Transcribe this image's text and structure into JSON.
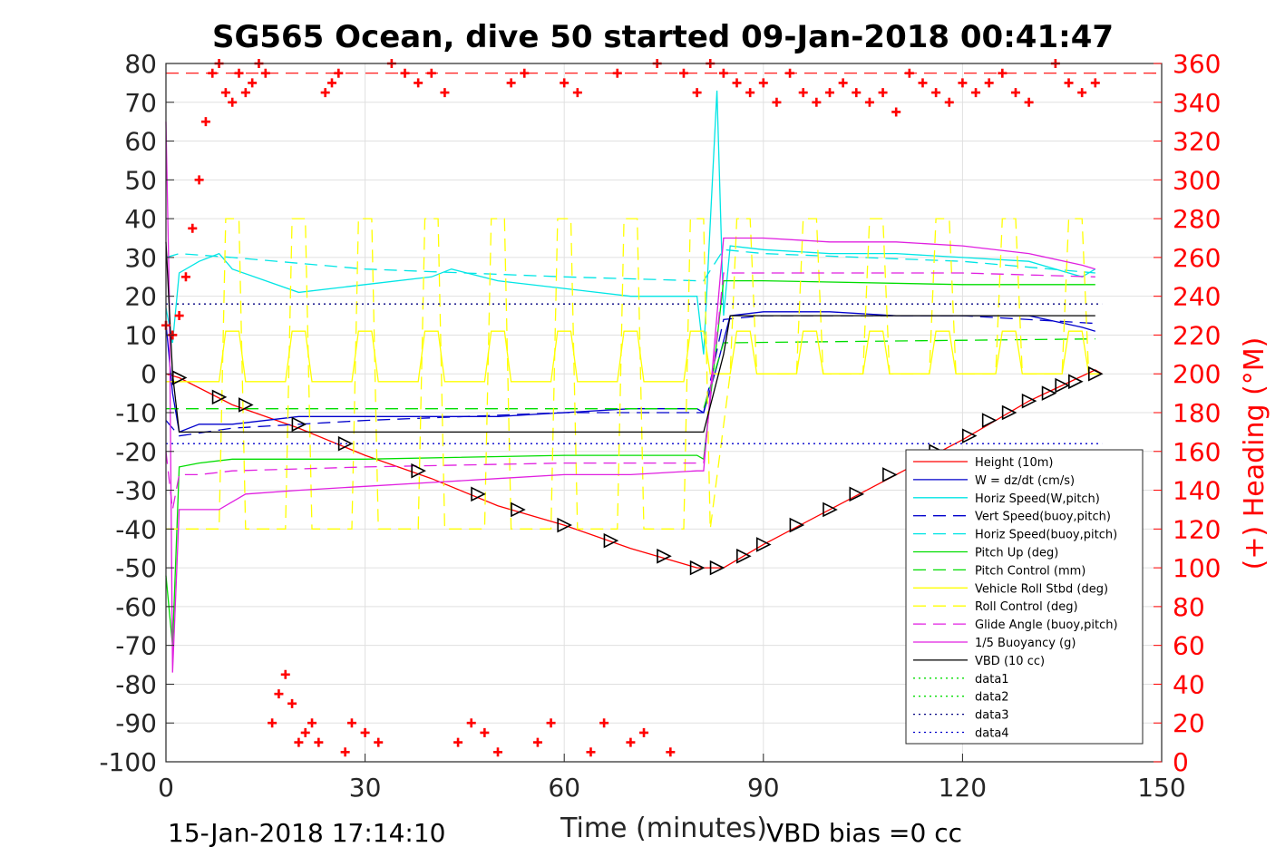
{
  "chart_data": {
    "type": "line",
    "title": "SG565 Ocean, dive 50 started 09-Jan-2018 00:41:47",
    "xlabel": "Time (minutes)",
    "ylabel": "",
    "y2label": "(+) Heading (°M)",
    "xlim": [
      0,
      150
    ],
    "ylim": [
      -100,
      80
    ],
    "y2lim": [
      0,
      360
    ],
    "xticks": [
      "0",
      "30",
      "60",
      "90",
      "120",
      "150"
    ],
    "yticks": [
      "80",
      "70",
      "60",
      "50",
      "40",
      "30",
      "20",
      "10",
      "0",
      "-10",
      "-20",
      "-30",
      "-40",
      "-50",
      "-60",
      "-70",
      "-80",
      "-90",
      "-100"
    ],
    "y2ticks": [
      "360",
      "340",
      "320",
      "300",
      "280",
      "260",
      "240",
      "220",
      "200",
      "180",
      "160",
      "140",
      "120",
      "100",
      "80",
      "60",
      "40",
      "20",
      "0"
    ],
    "grid": true,
    "legend_position": "lower-right",
    "footer_left": "15-Jan-2018 17:14:10",
    "footer_right": "VBD bias =0 cc",
    "series": [
      {
        "name": "Height (10m)",
        "color": "#ff0000",
        "style": "solid",
        "x": [
          0,
          2,
          10,
          20,
          30,
          40,
          50,
          60,
          70,
          80,
          84,
          90,
          100,
          110,
          120,
          130,
          140,
          141
        ],
        "y": [
          0,
          -1,
          -8,
          -14,
          -21,
          -27,
          -34,
          -39,
          -45,
          -50,
          -50,
          -44,
          -35,
          -26,
          -17,
          -7,
          1,
          0
        ]
      },
      {
        "name": "W = dz/dt (cm/s)",
        "color": "#0000cc",
        "style": "solid",
        "x": [
          0,
          1,
          2,
          5,
          10,
          20,
          30,
          40,
          50,
          60,
          70,
          80,
          81,
          83,
          85,
          90,
          100,
          110,
          120,
          130,
          138,
          140
        ],
        "y": [
          13,
          -5,
          -15,
          -13,
          -13,
          -11,
          -11,
          -11,
          -11,
          -10,
          -9,
          -9,
          -10,
          2,
          15,
          16,
          16,
          15,
          15,
          15,
          12,
          11
        ]
      },
      {
        "name": "Horiz Speed(W,pitch)",
        "color": "#00e5e5",
        "style": "solid",
        "x": [
          0,
          1,
          2,
          5,
          8,
          10,
          20,
          30,
          40,
          43,
          50,
          60,
          70,
          80,
          81,
          83,
          84,
          85,
          90,
          100,
          110,
          120,
          130,
          138,
          140
        ],
        "y": [
          17,
          8,
          26,
          29,
          31,
          27,
          21,
          23,
          25,
          27,
          24,
          22,
          20,
          20,
          5,
          73,
          15,
          33,
          32,
          31,
          31,
          30,
          29,
          25,
          27
        ]
      },
      {
        "name": "Vert Speed(buoy,pitch)",
        "color": "#0000cc",
        "style": "dashed",
        "x": [
          0,
          2,
          10,
          30,
          60,
          80,
          81,
          84,
          90,
          120,
          140
        ],
        "y": [
          -12,
          -16,
          -14,
          -12,
          -10,
          -10,
          -10,
          14,
          15,
          15,
          13
        ]
      },
      {
        "name": "Horiz Speed(buoy,pitch)",
        "color": "#00e5e5",
        "style": "dashed",
        "x": [
          0,
          2,
          10,
          30,
          60,
          80,
          81,
          84,
          90,
          120,
          140
        ],
        "y": [
          30,
          31,
          30,
          27,
          25,
          24,
          24,
          32,
          31,
          29,
          26
        ]
      },
      {
        "name": "Pitch Up (deg)",
        "color": "#00dd00",
        "style": "solid",
        "x": [
          0,
          1,
          2,
          5,
          10,
          30,
          60,
          80,
          81,
          84,
          90,
          120,
          140
        ],
        "y": [
          -52,
          -70,
          -24,
          -23,
          -22,
          -22,
          -21,
          -21,
          -22,
          24,
          24,
          23,
          23
        ]
      },
      {
        "name": "Pitch Control (mm)",
        "color": "#00dd00",
        "style": "dashed",
        "x": [
          0,
          2,
          80,
          81,
          84,
          140
        ],
        "y": [
          -9,
          -9,
          -9,
          -9,
          8,
          9
        ]
      },
      {
        "name": "Vehicle Roll Stbd (deg)",
        "color": "#ffff00",
        "style": "solid",
        "x": [
          0,
          8,
          9,
          11,
          12,
          18,
          19,
          21,
          22,
          28,
          29,
          31,
          32,
          38,
          39,
          41,
          42,
          48,
          49,
          51,
          52,
          58,
          59,
          61,
          62,
          68,
          69,
          71,
          72,
          78,
          79,
          81,
          82,
          85,
          86,
          88,
          89,
          95,
          96,
          98,
          99,
          105,
          106,
          108,
          109,
          115,
          116,
          118,
          119,
          125,
          126,
          128,
          129,
          135,
          136,
          138,
          139,
          141
        ],
        "y": [
          -2,
          -2,
          11,
          11,
          -2,
          -2,
          11,
          11,
          -2,
          -2,
          11,
          11,
          -2,
          -2,
          11,
          11,
          -2,
          -2,
          11,
          11,
          -2,
          -2,
          11,
          11,
          -2,
          -2,
          11,
          11,
          -2,
          -2,
          11,
          11,
          0,
          0,
          11,
          11,
          0,
          0,
          11,
          11,
          0,
          0,
          11,
          11,
          0,
          0,
          11,
          11,
          0,
          0,
          11,
          11,
          0,
          0,
          11,
          11,
          0,
          0
        ]
      },
      {
        "name": "Roll Control (deg)",
        "color": "#ffff00",
        "style": "dashed",
        "x": [
          0,
          8,
          9,
          11,
          12,
          18,
          19,
          21,
          22,
          28,
          29,
          31,
          32,
          38,
          39,
          41,
          42,
          48,
          49,
          51,
          52,
          58,
          59,
          61,
          62,
          68,
          69,
          71,
          72,
          78,
          79,
          81,
          82,
          85,
          86,
          88,
          89,
          95,
          96,
          98,
          99,
          105,
          106,
          108,
          109,
          115,
          116,
          118,
          119,
          125,
          126,
          128,
          129,
          135,
          136,
          138,
          139,
          141
        ],
        "y": [
          -40,
          -40,
          40,
          40,
          -40,
          -40,
          40,
          40,
          -40,
          -40,
          40,
          40,
          -40,
          -40,
          40,
          40,
          -40,
          -40,
          40,
          40,
          -40,
          -40,
          40,
          40,
          -40,
          -40,
          40,
          40,
          -40,
          -40,
          40,
          40,
          -40,
          0,
          40,
          40,
          0,
          0,
          40,
          40,
          0,
          0,
          40,
          40,
          0,
          0,
          40,
          40,
          0,
          0,
          40,
          40,
          0,
          0,
          40,
          40,
          0,
          0
        ]
      },
      {
        "name": "Glide Angle (buoy,pitch)",
        "color": "#e020e0",
        "style": "dashed",
        "x": [
          0,
          1,
          2,
          5,
          10,
          30,
          60,
          80,
          81,
          84,
          90,
          120,
          140
        ],
        "y": [
          -20,
          -35,
          -26,
          -26,
          -25,
          -24,
          -23,
          -23,
          -23,
          26,
          26,
          26,
          25
        ]
      },
      {
        "name": "1/5 Buoyancy (g)",
        "color": "#e020e0",
        "style": "solid",
        "x": [
          0,
          0.5,
          1,
          2,
          8,
          12,
          20,
          30,
          40,
          50,
          60,
          70,
          80,
          81,
          84,
          90,
          100,
          110,
          120,
          130,
          138,
          140
        ],
        "y": [
          65,
          20,
          -77,
          -35,
          -35,
          -31,
          -30,
          -29,
          -28,
          -27,
          -26,
          -26,
          -25,
          -25,
          35,
          35,
          34,
          34,
          33,
          31,
          28,
          27
        ]
      },
      {
        "name": "VBD (10 cc)",
        "color": "#000000",
        "style": "solid",
        "x": [
          0,
          1,
          2,
          10,
          20,
          30,
          60,
          80,
          81,
          84,
          85,
          100,
          120,
          140
        ],
        "y": [
          34,
          0,
          -15,
          -15,
          -15,
          -15,
          -15,
          -15,
          -15,
          5,
          15,
          15,
          15,
          15
        ]
      },
      {
        "name": "data1",
        "color": "#00dd00",
        "style": "dotted",
        "x": [],
        "y": []
      },
      {
        "name": "data2",
        "color": "#00dd00",
        "style": "dotted",
        "x": [],
        "y": []
      },
      {
        "name": "data3",
        "color": "#000080",
        "style": "dotted",
        "x": [
          0,
          141
        ],
        "y": [
          18,
          18
        ]
      },
      {
        "name": "data4",
        "color": "#0000cc",
        "style": "dotted",
        "x": [
          0,
          141
        ],
        "y": [
          -18,
          -18
        ]
      }
    ],
    "heading_series": {
      "color": "#ff0000",
      "marker": "+",
      "axis": "right",
      "x": [
        0,
        1,
        2,
        3,
        4,
        5,
        6,
        7,
        8,
        9,
        10,
        11,
        12,
        13,
        14,
        15,
        16,
        17,
        18,
        19,
        20,
        21,
        22,
        23,
        24,
        25,
        26,
        27,
        28,
        30,
        32,
        34,
        36,
        38,
        40,
        42,
        44,
        46,
        48,
        50,
        52,
        54,
        56,
        58,
        60,
        62,
        64,
        66,
        68,
        70,
        72,
        74,
        76,
        78,
        80,
        82,
        84,
        86,
        88,
        90,
        92,
        94,
        96,
        98,
        100,
        102,
        104,
        106,
        108,
        110,
        112,
        114,
        116,
        118,
        120,
        122,
        124,
        126,
        128,
        130,
        132,
        134,
        136,
        138,
        140
      ],
      "y": [
        225,
        220,
        230,
        250,
        275,
        300,
        330,
        355,
        360,
        345,
        340,
        355,
        345,
        350,
        360,
        355,
        20,
        35,
        45,
        30,
        10,
        15,
        20,
        10,
        345,
        350,
        355,
        5,
        20,
        15,
        10,
        360,
        355,
        350,
        355,
        345,
        10,
        20,
        15,
        5,
        350,
        355,
        10,
        20,
        350,
        345,
        5,
        20,
        355,
        10,
        15,
        360,
        5,
        355,
        345,
        360,
        355,
        350,
        345,
        350,
        340,
        355,
        345,
        340,
        345,
        350,
        345,
        340,
        345,
        335,
        355,
        350,
        345,
        340,
        350,
        345,
        350,
        355,
        345,
        340,
        15,
        360,
        350,
        345,
        350
      ],
      "mean_line": 355
    },
    "triangle_markers": {
      "x": [
        2,
        8,
        12,
        20,
        27,
        38,
        47,
        53,
        60,
        67,
        75,
        80,
        83,
        87,
        90,
        95,
        100,
        104,
        109,
        116,
        121,
        124,
        127,
        130,
        133,
        135,
        137,
        140
      ],
      "y": [
        -1,
        -6,
        -8,
        -13,
        -18,
        -25,
        -31,
        -35,
        -39,
        -43,
        -47,
        -50,
        -50,
        -47,
        -44,
        -39,
        -35,
        -31,
        -26,
        -20,
        -16,
        -12,
        -10,
        -7,
        -5,
        -3,
        -2,
        0
      ]
    }
  }
}
